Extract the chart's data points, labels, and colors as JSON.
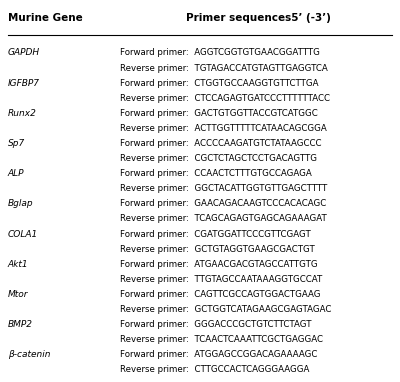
{
  "title_col1": "Murine Gene",
  "title_col2": "Primer sequences5’ (-3’)",
  "background_color": "#ffffff",
  "header_line_color": "#000000",
  "rows": [
    {
      "gene": "GAPDH",
      "forward": "AGGTCGGTGTGAACGGATTTG",
      "reverse": "TGTAGACCATGTAGTTGAGGTCA"
    },
    {
      "gene": "IGFBP7",
      "forward": "CTGGTGCCAAGGTGTTCTTGA",
      "reverse": "CTCCAGAGTGATCCCTTTTTTACC"
    },
    {
      "gene": "Runx2",
      "forward": "GACTGTGGTTACCGTCATGGC",
      "reverse": "ACTTGGTTTTTCATAACAGCGGA"
    },
    {
      "gene": "Sp7",
      "forward": "ACCCCAAGATGTCTATAAGCCC",
      "reverse": "CGCTCTAGCTCCTGACAGTTG"
    },
    {
      "gene": "ALP",
      "forward": "CCAACTCTTTGTGCCAGAGA",
      "reverse": "GGCTACATTGGTGTTGAGCTTTT"
    },
    {
      "gene": "Bglap",
      "forward": "GAACAGACAAGTCCCACACAGC",
      "reverse": "TCAGCAGAGTGAGCAGAAAGAT"
    },
    {
      "gene": "COLA1",
      "forward": "CGATGGATTCCCGTTCGAGT",
      "reverse": "GCTGTAGGTGAAGCGACTGT"
    },
    {
      "gene": "Akt1",
      "forward": "ATGAACGACGTAGCCATTGTG",
      "reverse": "TTGTAGCCAATAAAGGTGCCAT"
    },
    {
      "gene": "Mtor",
      "forward": "CAGTTCGCCAGTGGACTGAAG",
      "reverse": "GCTGGTCATAGAAGCGAGTAGAC"
    },
    {
      "gene": "BMP2",
      "forward": "GGGACCCGCTGTCTTCTAGT",
      "reverse": "TCAACTCAAATTCGCTGAGGAC"
    },
    {
      "gene": "β-catenin",
      "forward": "ATGGAGCCGGACAGAAAAGC",
      "reverse": "CTTGCCACTCAGGGAAGGA"
    }
  ]
}
